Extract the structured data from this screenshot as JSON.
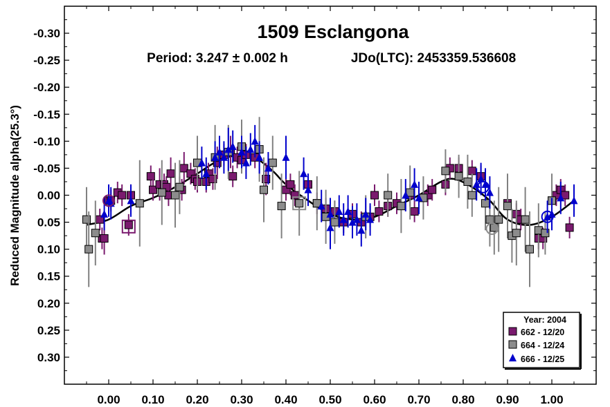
{
  "chart_data": {
    "type": "scatter",
    "title": "1509 Esclangona",
    "subtitle_period": "Period: 3.247 ± 0.002 h",
    "subtitle_epoch": "JDo(LTC): 2453359.536608",
    "ylabel": "Reduced Magnitude alpha(25.3°)",
    "xlabel": "",
    "xlim": [
      -0.1,
      1.1
    ],
    "ylim": [
      -0.35,
      0.35
    ],
    "y_inverted": true,
    "x_ticks": [
      "0.00",
      "0.10",
      "0.20",
      "0.30",
      "0.40",
      "0.50",
      "0.60",
      "0.70",
      "0.80",
      "0.90",
      "1.00"
    ],
    "y_ticks": [
      "-0.30",
      "-0.25",
      "-0.20",
      "-0.15",
      "-0.10",
      "-0.05",
      "0.00",
      "0.05",
      "0.10",
      "0.15",
      "0.20",
      "0.25",
      "0.30"
    ],
    "legend": {
      "title": "Year: 2004",
      "position": "bottom-right"
    },
    "series": [
      {
        "name": "662 - 12/20",
        "marker": "square",
        "color": "#7a1a6e",
        "error_color": "#7a1a6e",
        "points": [
          [
            -0.02,
            0.045,
            0.02
          ],
          [
            -0.015,
            0.08,
            0.02
          ],
          [
            -0.01,
            0.08,
            0.03
          ],
          [
            0.0,
            0.01,
            0.02
          ],
          [
            0.005,
            0.01,
            0.02
          ],
          [
            0.02,
            -0.005,
            0.02
          ],
          [
            0.03,
            0.0,
            0.02
          ],
          [
            0.045,
            0.055,
            0.02
          ],
          [
            0.05,
            0.0,
            0.02
          ],
          [
            0.095,
            -0.035,
            0.02
          ],
          [
            0.1,
            -0.01,
            0.02
          ],
          [
            0.115,
            -0.02,
            0.03
          ],
          [
            0.125,
            -0.02,
            0.02
          ],
          [
            0.13,
            -0.015,
            0.02
          ],
          [
            0.135,
            0.0,
            0.02
          ],
          [
            0.14,
            -0.04,
            0.03
          ],
          [
            0.16,
            -0.015,
            0.02
          ],
          [
            0.165,
            -0.01,
            0.02
          ],
          [
            0.17,
            -0.05,
            0.03
          ],
          [
            0.185,
            -0.04,
            0.02
          ],
          [
            0.195,
            -0.03,
            0.02
          ],
          [
            0.2,
            -0.025,
            0.02
          ],
          [
            0.22,
            -0.025,
            0.02
          ],
          [
            0.225,
            -0.04,
            0.02
          ],
          [
            0.235,
            -0.03,
            0.02
          ],
          [
            0.245,
            -0.06,
            0.03
          ],
          [
            0.26,
            -0.075,
            0.02
          ],
          [
            0.275,
            -0.08,
            0.03
          ],
          [
            0.28,
            -0.035,
            0.02
          ],
          [
            0.29,
            -0.07,
            0.02
          ],
          [
            0.3,
            -0.065,
            0.02
          ],
          [
            0.31,
            -0.075,
            0.02
          ],
          [
            0.33,
            -0.07,
            0.02
          ],
          [
            0.355,
            -0.03,
            0.03
          ],
          [
            0.4,
            -0.01,
            0.02
          ],
          [
            0.41,
            -0.02,
            0.02
          ],
          [
            0.42,
            0.0,
            0.02
          ],
          [
            0.45,
            -0.02,
            0.02
          ],
          [
            0.47,
            0.015,
            0.02
          ],
          [
            0.49,
            0.025,
            0.02
          ],
          [
            0.51,
            0.03,
            0.02
          ],
          [
            0.53,
            0.05,
            0.02
          ],
          [
            0.55,
            0.035,
            0.02
          ],
          [
            0.57,
            0.05,
            0.02
          ],
          [
            0.59,
            0.04,
            0.02
          ],
          [
            0.61,
            0.03,
            0.02
          ],
          [
            0.63,
            0.02,
            0.02
          ],
          [
            0.6,
            0.0,
            0.02
          ],
          [
            0.65,
            0.015,
            0.02
          ],
          [
            0.68,
            0.0,
            0.02
          ],
          [
            0.69,
            0.03,
            0.02
          ],
          [
            0.72,
            0.0,
            0.02
          ],
          [
            0.73,
            -0.01,
            0.02
          ],
          [
            0.76,
            -0.02,
            0.02
          ],
          [
            0.77,
            -0.05,
            0.02
          ],
          [
            0.79,
            -0.05,
            0.02
          ],
          [
            0.82,
            -0.045,
            0.02
          ],
          [
            0.84,
            -0.035,
            0.02
          ],
          [
            0.9,
            0.015,
            0.02
          ],
          [
            0.92,
            0.035,
            0.02
          ],
          [
            0.93,
            0.045,
            0.02
          ],
          [
            0.97,
            0.08,
            0.02
          ],
          [
            0.98,
            0.08,
            0.02
          ],
          [
            1.0,
            0.01,
            0.02
          ],
          [
            1.01,
            0.0,
            0.02
          ],
          [
            1.02,
            -0.01,
            0.02
          ],
          [
            1.03,
            0.0,
            0.02
          ],
          [
            1.04,
            0.06,
            0.02
          ]
        ]
      },
      {
        "name": "664 - 12/24",
        "marker": "square",
        "color": "#8c8c8c",
        "error_color": "#808080",
        "points": [
          [
            -0.05,
            0.045,
            0.06
          ],
          [
            -0.045,
            0.1,
            0.07
          ],
          [
            -0.03,
            0.07,
            0.06
          ],
          [
            0.07,
            0.015,
            0.08
          ],
          [
            0.12,
            -0.005,
            0.06
          ],
          [
            0.15,
            0.0,
            0.06
          ],
          [
            0.16,
            -0.015,
            0.05
          ],
          [
            0.2,
            -0.06,
            0.05
          ],
          [
            0.24,
            -0.07,
            0.06
          ],
          [
            0.27,
            -0.08,
            0.05
          ],
          [
            0.3,
            -0.09,
            0.05
          ],
          [
            0.34,
            -0.085,
            0.06
          ],
          [
            0.35,
            -0.01,
            0.06
          ],
          [
            0.37,
            -0.06,
            0.05
          ],
          [
            0.39,
            0.02,
            0.06
          ],
          [
            0.43,
            0.015,
            0.06
          ],
          [
            0.47,
            0.015,
            0.05
          ],
          [
            0.49,
            0.04,
            0.05
          ],
          [
            0.51,
            0.05,
            0.04
          ],
          [
            0.58,
            0.04,
            0.04
          ],
          [
            0.63,
            0.0,
            0.04
          ],
          [
            0.66,
            0.02,
            0.05
          ],
          [
            0.68,
            -0.005,
            0.05
          ],
          [
            0.71,
            0.005,
            0.04
          ],
          [
            0.76,
            -0.045,
            0.04
          ],
          [
            0.79,
            -0.035,
            0.04
          ],
          [
            0.81,
            -0.025,
            0.05
          ],
          [
            0.82,
            0.0,
            0.04
          ],
          [
            0.85,
            0.015,
            0.05
          ],
          [
            0.86,
            0.045,
            0.05
          ],
          [
            0.87,
            0.06,
            0.05
          ],
          [
            0.88,
            0.045,
            0.06
          ],
          [
            0.9,
            0.02,
            0.06
          ],
          [
            0.91,
            0.075,
            0.05
          ],
          [
            0.92,
            0.07,
            0.06
          ],
          [
            0.94,
            0.045,
            0.06
          ],
          [
            0.95,
            0.1,
            0.07
          ],
          [
            0.97,
            0.065,
            0.05
          ],
          [
            0.985,
            0.07,
            0.04
          ],
          [
            1.0,
            0.01,
            0.05
          ]
        ]
      },
      {
        "name": "666 - 12/25",
        "marker": "triangle",
        "color": "#0000cc",
        "error_color": "#0000cc",
        "points": [
          [
            -0.01,
            0.035,
            0.03
          ],
          [
            0.0,
            0.01,
            0.03
          ],
          [
            0.005,
            0.015,
            0.03
          ],
          [
            0.05,
            0.01,
            0.03
          ],
          [
            0.21,
            -0.06,
            0.03
          ],
          [
            0.22,
            -0.04,
            0.03
          ],
          [
            0.24,
            -0.07,
            0.03
          ],
          [
            0.25,
            -0.08,
            0.03
          ],
          [
            0.26,
            -0.07,
            0.03
          ],
          [
            0.27,
            -0.085,
            0.04
          ],
          [
            0.28,
            -0.09,
            0.03
          ],
          [
            0.3,
            -0.08,
            0.03
          ],
          [
            0.31,
            -0.06,
            0.03
          ],
          [
            0.32,
            -0.085,
            0.03
          ],
          [
            0.33,
            -0.1,
            0.03
          ],
          [
            0.34,
            -0.07,
            0.03
          ],
          [
            0.36,
            -0.05,
            0.03
          ],
          [
            0.4,
            -0.07,
            0.04
          ],
          [
            0.44,
            -0.04,
            0.03
          ],
          [
            0.45,
            -0.01,
            0.03
          ],
          [
            0.48,
            0.02,
            0.03
          ],
          [
            0.5,
            0.035,
            0.03
          ],
          [
            0.5,
            0.06,
            0.04
          ],
          [
            0.52,
            0.03,
            0.03
          ],
          [
            0.53,
            0.045,
            0.03
          ],
          [
            0.54,
            0.03,
            0.03
          ],
          [
            0.55,
            0.05,
            0.03
          ],
          [
            0.56,
            0.045,
            0.03
          ],
          [
            0.57,
            0.065,
            0.03
          ],
          [
            0.58,
            0.035,
            0.03
          ],
          [
            0.59,
            0.045,
            0.03
          ],
          [
            0.67,
            0.0,
            0.03
          ],
          [
            0.69,
            -0.02,
            0.03
          ],
          [
            0.7,
            0.005,
            0.03
          ],
          [
            0.83,
            -0.02,
            0.03
          ],
          [
            0.84,
            -0.03,
            0.03
          ],
          [
            0.85,
            -0.02,
            0.03
          ],
          [
            0.86,
            -0.005,
            0.03
          ],
          [
            0.99,
            0.04,
            0.03
          ],
          [
            1.0,
            0.035,
            0.03
          ],
          [
            1.02,
            0.005,
            0.03
          ],
          [
            1.05,
            0.01,
            0.03
          ]
        ]
      }
    ],
    "highlighted": [
      {
        "x": 0.0,
        "y": 0.01,
        "shape": "circle",
        "color": "#7a1a6e"
      },
      {
        "x": 0.045,
        "y": 0.058,
        "shape": "square",
        "color": "#7a1a6e"
      },
      {
        "x": 0.43,
        "y": 0.015,
        "shape": "square",
        "color": "#8c8c8c"
      },
      {
        "x": 0.865,
        "y": 0.062,
        "shape": "circle",
        "color": "#8c8c8c"
      },
      {
        "x": 0.99,
        "y": 0.04,
        "shape": "circle",
        "color": "#0000cc"
      },
      {
        "x": 0.845,
        "y": -0.015,
        "shape": "circle",
        "color": "#0000cc"
      }
    ],
    "fit_curve": {
      "color": "#000000",
      "points": [
        [
          -0.05,
          0.055
        ],
        [
          0.0,
          0.045
        ],
        [
          0.05,
          0.02
        ],
        [
          0.1,
          0.005
        ],
        [
          0.15,
          -0.015
        ],
        [
          0.2,
          -0.04
        ],
        [
          0.25,
          -0.065
        ],
        [
          0.3,
          -0.075
        ],
        [
          0.33,
          -0.07
        ],
        [
          0.37,
          -0.045
        ],
        [
          0.4,
          -0.02
        ],
        [
          0.45,
          0.01
        ],
        [
          0.5,
          0.035
        ],
        [
          0.55,
          0.045
        ],
        [
          0.6,
          0.04
        ],
        [
          0.65,
          0.02
        ],
        [
          0.7,
          0.0
        ],
        [
          0.75,
          -0.025
        ],
        [
          0.78,
          -0.03
        ],
        [
          0.82,
          -0.015
        ],
        [
          0.86,
          0.01
        ],
        [
          0.9,
          0.045
        ],
        [
          0.95,
          0.055
        ],
        [
          1.0,
          0.04
        ],
        [
          1.05,
          0.01
        ]
      ]
    }
  }
}
